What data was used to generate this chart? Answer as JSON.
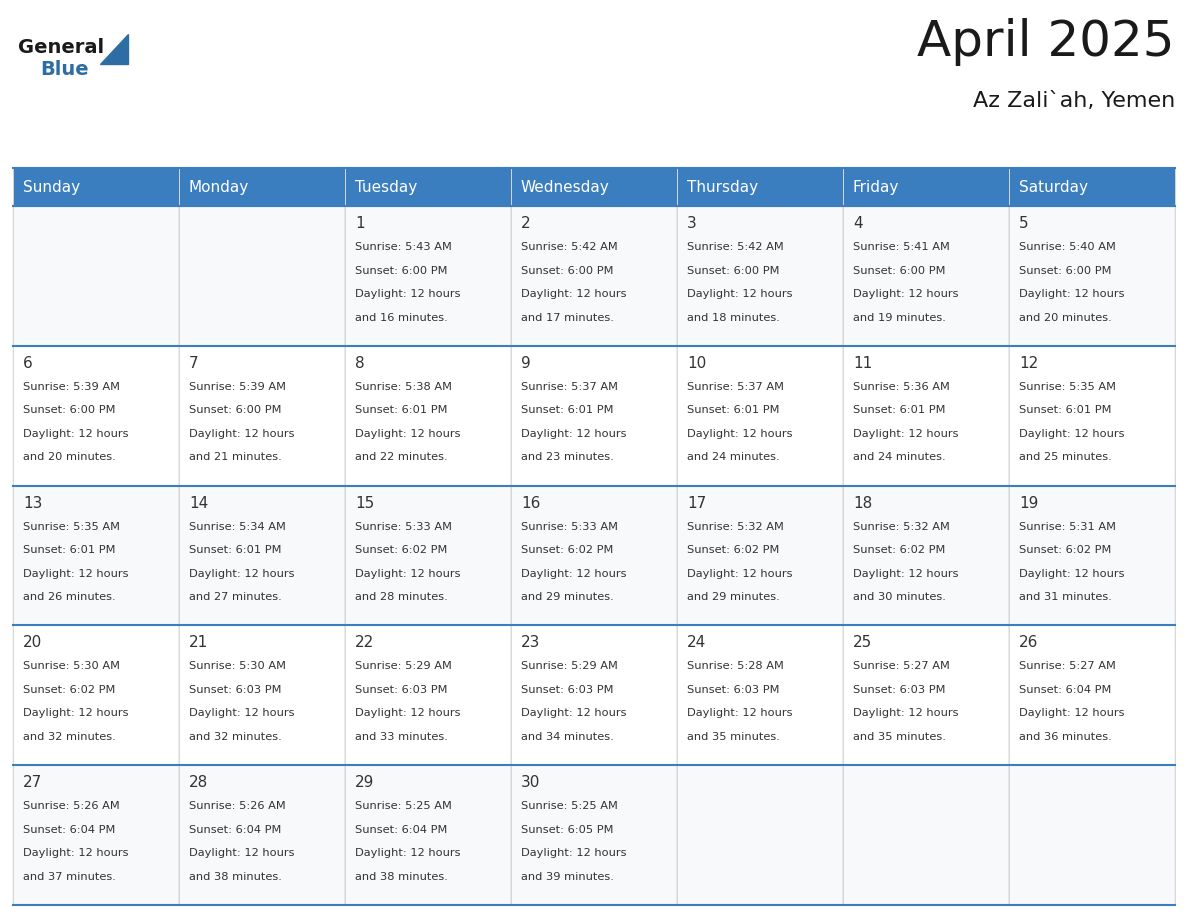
{
  "title": "April 2025",
  "subtitle": "Az Zali`ah, Yemen",
  "header_bg": "#3a7ebf",
  "header_text_color": "#ffffff",
  "cell_bg_light": "#f0f4f8",
  "cell_bg_white": "#ffffff",
  "border_color": "#3a7ebf",
  "text_color": "#333333",
  "days_of_week": [
    "Sunday",
    "Monday",
    "Tuesday",
    "Wednesday",
    "Thursday",
    "Friday",
    "Saturday"
  ],
  "weeks": [
    [
      {
        "day": null,
        "sunrise": null,
        "sunset": null,
        "daylight_min": null
      },
      {
        "day": null,
        "sunrise": null,
        "sunset": null,
        "daylight_min": null
      },
      {
        "day": 1,
        "sunrise": "5:43 AM",
        "sunset": "6:00 PM",
        "daylight_min": 16
      },
      {
        "day": 2,
        "sunrise": "5:42 AM",
        "sunset": "6:00 PM",
        "daylight_min": 17
      },
      {
        "day": 3,
        "sunrise": "5:42 AM",
        "sunset": "6:00 PM",
        "daylight_min": 18
      },
      {
        "day": 4,
        "sunrise": "5:41 AM",
        "sunset": "6:00 PM",
        "daylight_min": 19
      },
      {
        "day": 5,
        "sunrise": "5:40 AM",
        "sunset": "6:00 PM",
        "daylight_min": 20
      }
    ],
    [
      {
        "day": 6,
        "sunrise": "5:39 AM",
        "sunset": "6:00 PM",
        "daylight_min": 20
      },
      {
        "day": 7,
        "sunrise": "5:39 AM",
        "sunset": "6:00 PM",
        "daylight_min": 21
      },
      {
        "day": 8,
        "sunrise": "5:38 AM",
        "sunset": "6:01 PM",
        "daylight_min": 22
      },
      {
        "day": 9,
        "sunrise": "5:37 AM",
        "sunset": "6:01 PM",
        "daylight_min": 23
      },
      {
        "day": 10,
        "sunrise": "5:37 AM",
        "sunset": "6:01 PM",
        "daylight_min": 24
      },
      {
        "day": 11,
        "sunrise": "5:36 AM",
        "sunset": "6:01 PM",
        "daylight_min": 24
      },
      {
        "day": 12,
        "sunrise": "5:35 AM",
        "sunset": "6:01 PM",
        "daylight_min": 25
      }
    ],
    [
      {
        "day": 13,
        "sunrise": "5:35 AM",
        "sunset": "6:01 PM",
        "daylight_min": 26
      },
      {
        "day": 14,
        "sunrise": "5:34 AM",
        "sunset": "6:01 PM",
        "daylight_min": 27
      },
      {
        "day": 15,
        "sunrise": "5:33 AM",
        "sunset": "6:02 PM",
        "daylight_min": 28
      },
      {
        "day": 16,
        "sunrise": "5:33 AM",
        "sunset": "6:02 PM",
        "daylight_min": 29
      },
      {
        "day": 17,
        "sunrise": "5:32 AM",
        "sunset": "6:02 PM",
        "daylight_min": 29
      },
      {
        "day": 18,
        "sunrise": "5:32 AM",
        "sunset": "6:02 PM",
        "daylight_min": 30
      },
      {
        "day": 19,
        "sunrise": "5:31 AM",
        "sunset": "6:02 PM",
        "daylight_min": 31
      }
    ],
    [
      {
        "day": 20,
        "sunrise": "5:30 AM",
        "sunset": "6:02 PM",
        "daylight_min": 32
      },
      {
        "day": 21,
        "sunrise": "5:30 AM",
        "sunset": "6:03 PM",
        "daylight_min": 32
      },
      {
        "day": 22,
        "sunrise": "5:29 AM",
        "sunset": "6:03 PM",
        "daylight_min": 33
      },
      {
        "day": 23,
        "sunrise": "5:29 AM",
        "sunset": "6:03 PM",
        "daylight_min": 34
      },
      {
        "day": 24,
        "sunrise": "5:28 AM",
        "sunset": "6:03 PM",
        "daylight_min": 35
      },
      {
        "day": 25,
        "sunrise": "5:27 AM",
        "sunset": "6:03 PM",
        "daylight_min": 35
      },
      {
        "day": 26,
        "sunrise": "5:27 AM",
        "sunset": "6:04 PM",
        "daylight_min": 36
      }
    ],
    [
      {
        "day": 27,
        "sunrise": "5:26 AM",
        "sunset": "6:04 PM",
        "daylight_min": 37
      },
      {
        "day": 28,
        "sunrise": "5:26 AM",
        "sunset": "6:04 PM",
        "daylight_min": 38
      },
      {
        "day": 29,
        "sunrise": "5:25 AM",
        "sunset": "6:04 PM",
        "daylight_min": 38
      },
      {
        "day": 30,
        "sunrise": "5:25 AM",
        "sunset": "6:05 PM",
        "daylight_min": 39
      },
      {
        "day": null,
        "sunrise": null,
        "sunset": null,
        "daylight_min": null
      },
      {
        "day": null,
        "sunrise": null,
        "sunset": null,
        "daylight_min": null
      },
      {
        "day": null,
        "sunrise": null,
        "sunset": null,
        "daylight_min": null
      }
    ]
  ]
}
